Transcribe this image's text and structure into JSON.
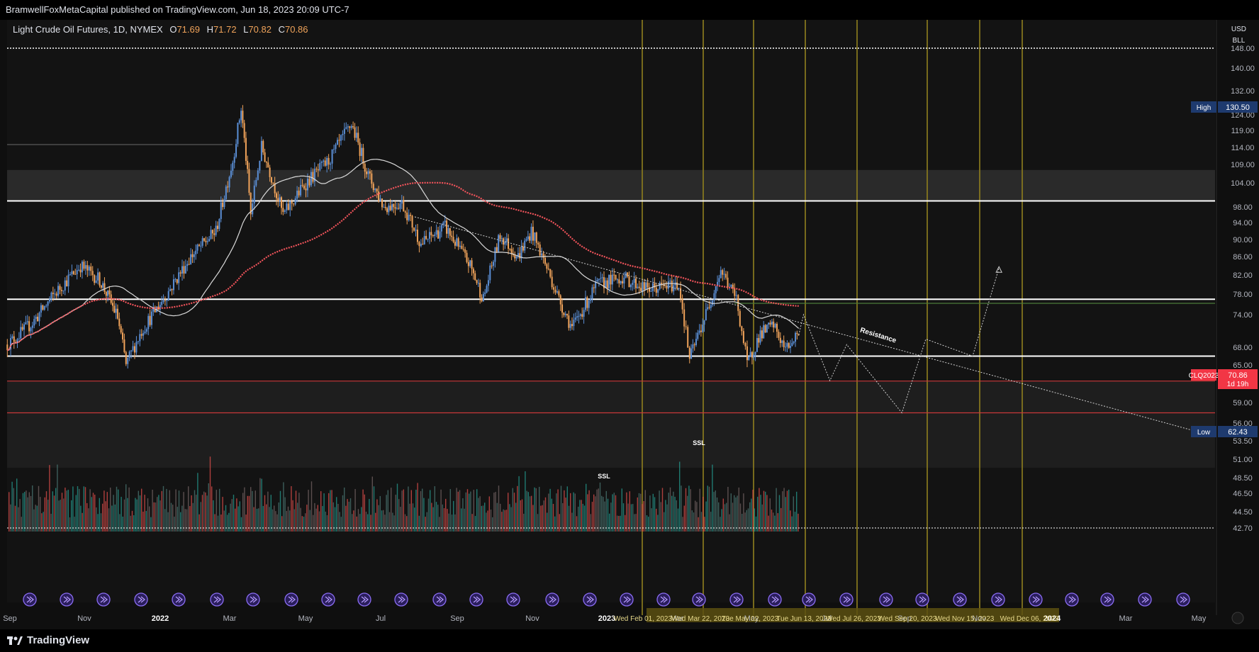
{
  "header": {
    "publisher_line": "BramwellFoxMetaCapital published on TradingView.com, Jun 18, 2023 20:09 UTC-7"
  },
  "legend": {
    "symbol": "Light Crude Oil Futures, 1D, NYMEX",
    "o_label": "O",
    "o_value": "71.69",
    "h_label": "H",
    "h_value": "71.72",
    "l_label": "L",
    "l_value": "70.82",
    "c_label": "C",
    "c_value": "70.86"
  },
  "axis_header": {
    "currency": "USD",
    "unit": "BLL"
  },
  "footer": {
    "brand": "TradingView"
  },
  "colors": {
    "background": "#0f0f0f",
    "up_candle": "#5b8fd6",
    "down_candle": "#f0a35a",
    "ma_fast": "#d9d9d9",
    "ma_slow": "#f2545b",
    "time_marker": "#8a7a1e",
    "resistance_green": "#4c7a3a",
    "ssl_red": "#c8383a",
    "label_blue": "#1e3a6e",
    "label_red": "#f23645"
  },
  "chart_data": {
    "type": "candlestick",
    "symbol": "Light Crude Oil Futures, 1D, NYMEX",
    "y_ticks": [
      "148.00",
      "140.00",
      "132.00",
      "124.00",
      "119.00",
      "114.00",
      "109.00",
      "104.00",
      "98.00",
      "94.00",
      "90.00",
      "86.00",
      "82.00",
      "78.00",
      "74.00",
      "68.00",
      "65.00",
      "59.00",
      "56.00",
      "53.50",
      "51.00",
      "48.50",
      "46.50",
      "44.50",
      "42.70"
    ],
    "x_ticks": [
      "Sep",
      "Nov",
      "2022",
      "Mar",
      "May",
      "Jul",
      "Sep",
      "Nov",
      "2023",
      "Mar",
      "May",
      "Jul",
      "Sep",
      "Nov",
      "2024",
      "Mar",
      "May"
    ],
    "price_tags": [
      {
        "label": "High",
        "value": "130.50"
      },
      {
        "label": "CLQ2023",
        "value": "70.86",
        "sub": "1d 19h"
      },
      {
        "label": "Low",
        "value": "62.43"
      }
    ],
    "price_path": [
      {
        "date": "2021-08-25",
        "close": 68.5
      },
      {
        "date": "2021-09-15",
        "close": 72.5
      },
      {
        "date": "2021-10-05",
        "close": 78.5
      },
      {
        "date": "2021-10-25",
        "close": 84.0
      },
      {
        "date": "2021-11-10",
        "close": 81.0
      },
      {
        "date": "2021-11-25",
        "close": 73.5
      },
      {
        "date": "2021-12-02",
        "close": 65.0
      },
      {
        "date": "2021-12-15",
        "close": 71.0
      },
      {
        "date": "2022-01-05",
        "close": 78.0
      },
      {
        "date": "2022-01-25",
        "close": 86.0
      },
      {
        "date": "2022-02-15",
        "close": 92.0
      },
      {
        "date": "2022-03-01",
        "close": 110.0
      },
      {
        "date": "2022-03-08",
        "close": 126.0
      },
      {
        "date": "2022-03-16",
        "close": 96.0
      },
      {
        "date": "2022-03-25",
        "close": 114.0
      },
      {
        "date": "2022-04-12",
        "close": 96.0
      },
      {
        "date": "2022-05-01",
        "close": 104.0
      },
      {
        "date": "2022-05-20",
        "close": 110.0
      },
      {
        "date": "2022-06-08",
        "close": 121.0
      },
      {
        "date": "2022-06-22",
        "close": 106.0
      },
      {
        "date": "2022-07-05",
        "close": 98.0
      },
      {
        "date": "2022-07-20",
        "close": 99.0
      },
      {
        "date": "2022-08-05",
        "close": 89.0
      },
      {
        "date": "2022-08-25",
        "close": 93.0
      },
      {
        "date": "2022-09-15",
        "close": 84.0
      },
      {
        "date": "2022-09-26",
        "close": 77.0
      },
      {
        "date": "2022-10-10",
        "close": 91.0
      },
      {
        "date": "2022-10-25",
        "close": 86.0
      },
      {
        "date": "2022-11-05",
        "close": 92.0
      },
      {
        "date": "2022-11-28",
        "close": 77.0
      },
      {
        "date": "2022-12-09",
        "close": 71.5
      },
      {
        "date": "2022-12-30",
        "close": 80.0
      },
      {
        "date": "2023-01-20",
        "close": 81.5
      },
      {
        "date": "2023-02-10",
        "close": 79.0
      },
      {
        "date": "2023-03-08",
        "close": 80.0
      },
      {
        "date": "2023-03-17",
        "close": 66.0
      },
      {
        "date": "2023-04-01",
        "close": 75.0
      },
      {
        "date": "2023-04-12",
        "close": 83.0
      },
      {
        "date": "2023-04-25",
        "close": 77.0
      },
      {
        "date": "2023-05-04",
        "close": 65.0
      },
      {
        "date": "2023-05-15",
        "close": 70.5
      },
      {
        "date": "2023-05-26",
        "close": 72.0
      },
      {
        "date": "2023-06-05",
        "close": 67.5
      },
      {
        "date": "2023-06-16",
        "close": 70.86
      }
    ],
    "horizontal_levels": [
      148.0,
      99.5,
      77.0,
      66.5
    ],
    "ssl_levels": [
      62.43,
      57.5
    ],
    "zones": [
      {
        "from": 99.5,
        "to": 107.5
      }
    ],
    "annotations": [
      {
        "text": "Resistance"
      },
      {
        "text": "SSL"
      },
      {
        "text": "SSL"
      }
    ],
    "time_markers": [
      "Wed Feb 01, 2023",
      "Wed Mar 22, 2023",
      "Tue May 02, 2023",
      "Tue Jun 13, 2023",
      "Wed Jul 26, 2023",
      "Wed Sep 20, 2023",
      "Wed Nov 15, 2023",
      "Wed Dec 06, 2023"
    ],
    "projection": [
      {
        "date": "2023-06-20",
        "close": 74.0
      },
      {
        "date": "2023-07-12",
        "close": 62.5
      },
      {
        "date": "2023-07-26",
        "close": 68.5
      },
      {
        "date": "2023-09-10",
        "close": 57.5
      },
      {
        "date": "2023-09-30",
        "close": 69.5
      },
      {
        "date": "2023-11-08",
        "close": 66.5
      },
      {
        "date": "2023-11-30",
        "close": 83.5
      }
    ]
  }
}
